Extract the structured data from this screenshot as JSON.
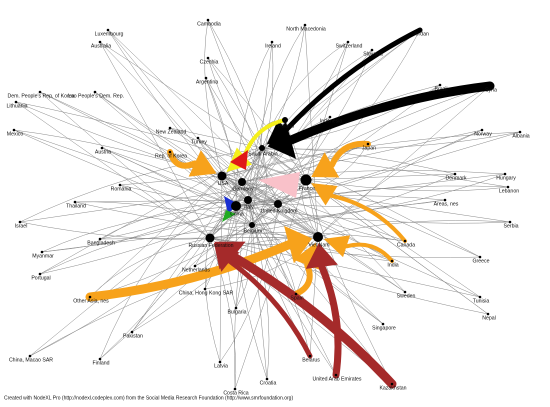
{
  "nodes": [
    {
      "label": "Cambodia"
    },
    {
      "label": "North Macedonia"
    },
    {
      "label": "Jordan"
    },
    {
      "label": "Luxembourg"
    },
    {
      "label": "Australia"
    },
    {
      "label": "Ireland"
    },
    {
      "label": "Switzerland"
    },
    {
      "label": "Slovakia"
    },
    {
      "label": "Czechia"
    },
    {
      "label": "Argentina"
    },
    {
      "label": "Brazil"
    },
    {
      "label": "Syria"
    },
    {
      "label": "Dem. People's Rep. of Korea"
    },
    {
      "label": "Lao People's Dem. Rep."
    },
    {
      "label": "Lithuania"
    },
    {
      "label": "Indonesia"
    },
    {
      "label": "Poland"
    },
    {
      "label": "Mexico"
    },
    {
      "label": "New Zealand"
    },
    {
      "label": "Norway"
    },
    {
      "label": "Albania"
    },
    {
      "label": "Turkey"
    },
    {
      "label": "Japan"
    },
    {
      "label": "Austria"
    },
    {
      "label": "Saudi Arabia"
    },
    {
      "label": "Rep. of Korea"
    },
    {
      "label": "Denmark"
    },
    {
      "label": "Hungary"
    },
    {
      "label": "Lebanon"
    },
    {
      "label": "USA"
    },
    {
      "label": "Germany"
    },
    {
      "label": "France"
    },
    {
      "label": "Romania"
    },
    {
      "label": "Thailand"
    },
    {
      "label": "Italy"
    },
    {
      "label": "Areas, nes"
    },
    {
      "label": "Israel"
    },
    {
      "label": "United Kingdom"
    },
    {
      "label": "China"
    },
    {
      "label": "Serbia"
    },
    {
      "label": "Belgium"
    },
    {
      "label": "Bangladesh"
    },
    {
      "label": "Canada"
    },
    {
      "label": "Russian Federation"
    },
    {
      "label": "Viet Nam"
    },
    {
      "label": "Myanmar"
    },
    {
      "label": "Greece"
    },
    {
      "label": "India"
    },
    {
      "label": "Portugal"
    },
    {
      "label": "Netherlands"
    },
    {
      "label": "Sweden"
    },
    {
      "label": "Spain"
    },
    {
      "label": "Other Asia, nes"
    },
    {
      "label": "China, Hong Kong SAR"
    },
    {
      "label": "Tunisia"
    },
    {
      "label": "Bulgaria"
    },
    {
      "label": "Nepal"
    },
    {
      "label": "Singapore"
    },
    {
      "label": "Pakistan"
    },
    {
      "label": "China, Macao SAR"
    },
    {
      "label": "Finland"
    },
    {
      "label": "Belarus"
    },
    {
      "label": "Latvia"
    },
    {
      "label": "United Arab Emirates"
    },
    {
      "label": "Kazakhstan"
    },
    {
      "label": "Croatia"
    },
    {
      "label": "Costa Rica"
    }
  ],
  "footer": "Created with NodeXL Pro (http://nodexl.codeplex.com) from the Social Media Research Foundation (http://www.smrfoundation.org)"
}
